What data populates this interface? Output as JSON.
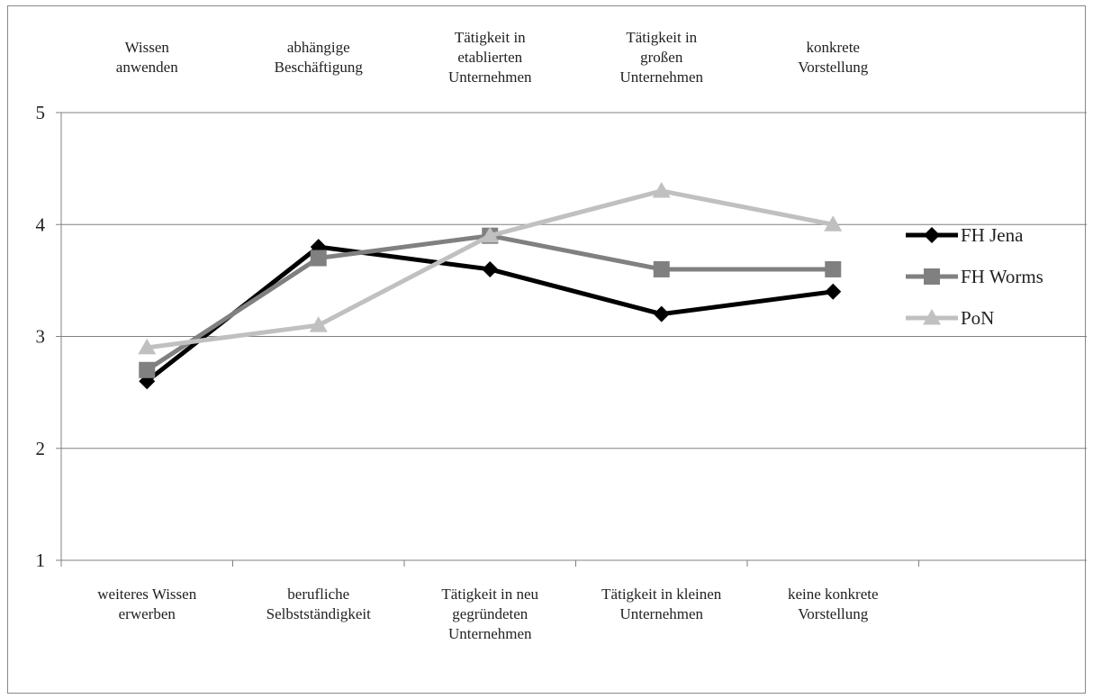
{
  "chart_data": {
    "type": "line",
    "categories": [
      [
        "weiteres Wissen",
        "erwerben"
      ],
      [
        "berufliche",
        "Selbstständigkeit"
      ],
      [
        "Tätigkeit in neu",
        "gegründeten",
        "Unternehmen"
      ],
      [
        "Tätigkeit in kleinen",
        "Unternehmen"
      ],
      [
        "keine konkrete",
        "Vorstellung"
      ]
    ],
    "top_labels": [
      [
        "Wissen",
        "anwenden"
      ],
      [
        "abhängige",
        "Beschäftigung"
      ],
      [
        "Tätigkeit in",
        "etablierten",
        "Unternehmen"
      ],
      [
        "Tätigkeit in",
        "großen",
        "Unternehmen"
      ],
      [
        "konkrete",
        "Vorstellung"
      ]
    ],
    "ylim": [
      1,
      5
    ],
    "yticks": [
      "1",
      "2",
      "3",
      "4",
      "5"
    ],
    "grid": true,
    "legend_position": "right",
    "series": [
      {
        "name": "FH Jena",
        "values": [
          2.6,
          3.8,
          3.6,
          3.2,
          3.4
        ],
        "color": "#000000",
        "marker": "diamond"
      },
      {
        "name": "FH Worms",
        "values": [
          2.7,
          3.7,
          3.9,
          3.6,
          3.6
        ],
        "color": "#808080",
        "marker": "square"
      },
      {
        "name": "PoN",
        "values": [
          2.9,
          3.1,
          3.9,
          4.3,
          4.0
        ],
        "color": "#c0c0c0",
        "marker": "triangle"
      }
    ]
  }
}
